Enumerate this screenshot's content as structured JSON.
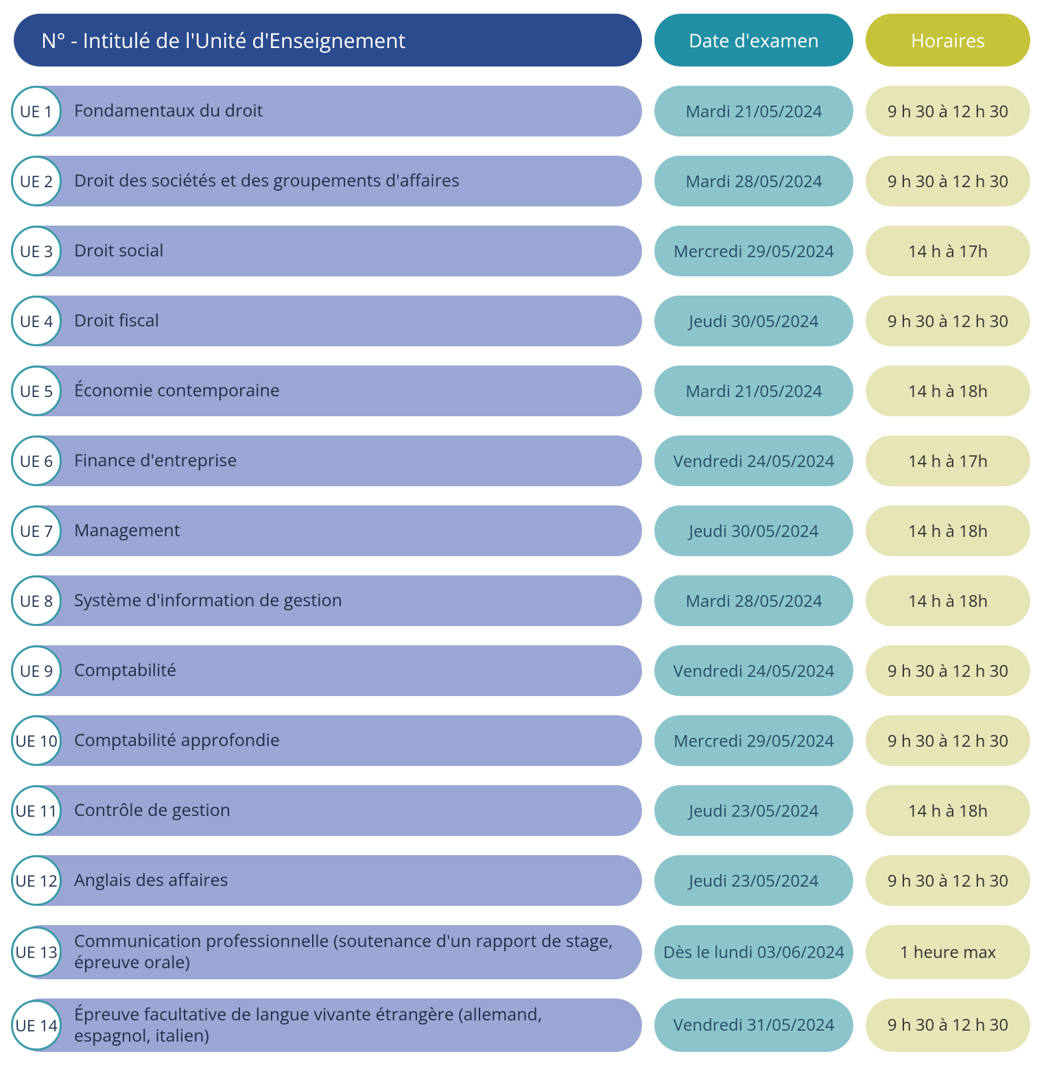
{
  "colors": {
    "header_title_bg": "#2a4b8d",
    "header_title_fg": "#ffffff",
    "header_date_bg": "#2290a4",
    "header_date_fg": "#ffffff",
    "header_hours_bg": "#c4c33a",
    "header_hours_fg": "#ffffff",
    "row_title_bg": "#9aa7d4",
    "row_title_fg": "#20304a",
    "row_date_bg": "#8bc5cb",
    "row_date_fg": "#2a4b6a",
    "row_hours_bg": "#e6e5b5",
    "row_hours_fg": "#323232",
    "badge_bg": "#ffffff",
    "badge_border": "#3a9aa8",
    "badge_fg": "#1e3150"
  },
  "header": {
    "title": "N°   -  Intitulé de l'Unité d'Enseignement",
    "date": "Date d'examen",
    "hours": "Horaires"
  },
  "rows": [
    {
      "ue": "UE 1",
      "title": "Fondamentaux du droit",
      "date": "Mardi 21/05/2024",
      "hours": "9 h 30 à 12 h 30"
    },
    {
      "ue": "UE 2",
      "title": "Droit des sociétés et des groupements d'affaires",
      "date": "Mardi 28/05/2024",
      "hours": "9 h 30 à 12 h 30"
    },
    {
      "ue": "UE 3",
      "title": "Droit social",
      "date": "Mercredi 29/05/2024",
      "hours": "14 h à 17h"
    },
    {
      "ue": "UE 4",
      "title": "Droit fiscal",
      "date": "Jeudi 30/05/2024",
      "hours": "9 h 30 à 12 h 30"
    },
    {
      "ue": "UE 5",
      "title": "Économie contemporaine",
      "date": "Mardi 21/05/2024",
      "hours": "14 h à 18h"
    },
    {
      "ue": "UE 6",
      "title": "Finance d'entreprise",
      "date": "Vendredi 24/05/2024",
      "hours": "14 h à 17h"
    },
    {
      "ue": "UE 7",
      "title": "Management",
      "date": "Jeudi 30/05/2024",
      "hours": "14 h à 18h"
    },
    {
      "ue": "UE 8",
      "title": "Système d'information de gestion",
      "date": "Mardi 28/05/2024",
      "hours": "14 h à 18h"
    },
    {
      "ue": "UE 9",
      "title": "Comptabilité",
      "date": "Vendredi 24/05/2024",
      "hours": "9 h 30 à 12 h 30"
    },
    {
      "ue": "UE 10",
      "title": "Comptabilité approfondie",
      "date": "Mercredi 29/05/2024",
      "hours": "9 h 30 à 12 h 30"
    },
    {
      "ue": "UE 11",
      "title": "Contrôle de gestion",
      "date": "Jeudi  23/05/2024",
      "hours": "14 h à 18h"
    },
    {
      "ue": "UE 12",
      "title": "Anglais des affaires",
      "date": "Jeudi  23/05/2024",
      "hours": "9 h 30 à 12 h 30"
    },
    {
      "ue": "UE 13",
      "title": "Communication professionnelle (soutenance d'un rapport de stage, épreuve orale)",
      "date": "Dès le lundi 03/06/2024",
      "hours": "1 heure max"
    },
    {
      "ue": "UE 14",
      "title": "Épreuve facultative de langue vivante étrangère (allemand, espagnol, italien)",
      "date": "Vendredi 31/05/2024",
      "hours": "9 h 30 à 12 h 30"
    }
  ]
}
